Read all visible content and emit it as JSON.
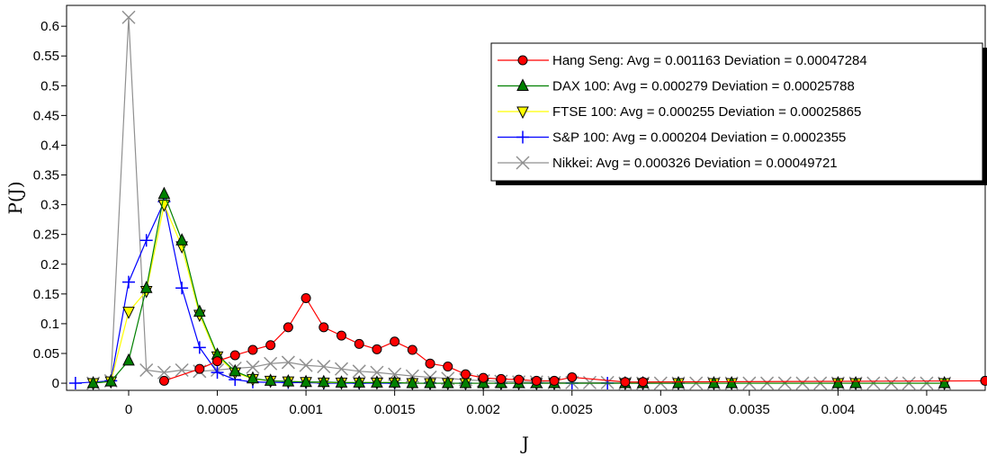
{
  "chart_data": {
    "type": "line",
    "title": "",
    "xlabel": "J",
    "ylabel": "P(J)",
    "xlim": [
      -0.00035,
      0.00483
    ],
    "ylim": [
      -0.012,
      0.635
    ],
    "grid": false,
    "legend_position": "top-right",
    "x_tick_labels": [
      "0",
      "0.0005",
      "0.001",
      "0.0015",
      "0.002",
      "0.0025",
      "0.003",
      "0.0035",
      "0.004",
      "0.0045"
    ],
    "y_tick_labels": [
      "0",
      "0.05",
      "0.1",
      "0.15",
      "0.2",
      "0.25",
      "0.3",
      "0.35",
      "0.4",
      "0.45",
      "0.5",
      "0.55",
      "0.6"
    ],
    "series": [
      {
        "name": "Hang Seng: Avg = 0.001163 Deviation = 0.00047284",
        "color": "#ff0000",
        "marker": "circle",
        "points": [
          [
            0.0002,
            0.004
          ],
          [
            0.0004,
            0.024
          ],
          [
            0.0005,
            0.037
          ],
          [
            0.0006,
            0.047
          ],
          [
            0.0007,
            0.056
          ],
          [
            0.0008,
            0.064
          ],
          [
            0.0009,
            0.094
          ],
          [
            0.001,
            0.143
          ],
          [
            0.0011,
            0.094
          ],
          [
            0.0012,
            0.08
          ],
          [
            0.0013,
            0.066
          ],
          [
            0.0014,
            0.057
          ],
          [
            0.0015,
            0.07
          ],
          [
            0.0016,
            0.056
          ],
          [
            0.0017,
            0.033
          ],
          [
            0.0018,
            0.028
          ],
          [
            0.0019,
            0.015
          ],
          [
            0.002,
            0.009
          ],
          [
            0.0021,
            0.007
          ],
          [
            0.0022,
            0.006
          ],
          [
            0.0023,
            0.004
          ],
          [
            0.0024,
            0.004
          ],
          [
            0.0025,
            0.01
          ],
          [
            0.0028,
            0.002
          ],
          [
            0.0029,
            0.002
          ],
          [
            0.00483,
            0.004
          ]
        ]
      },
      {
        "name": "DAX 100: Avg = 0.000279 Deviation = 0.00025788",
        "color": "#008000",
        "marker": "triangle-up",
        "points": [
          [
            -0.0002,
            0.0
          ],
          [
            -0.0001,
            0.003
          ],
          [
            0.0,
            0.038
          ],
          [
            0.0001,
            0.16
          ],
          [
            0.0002,
            0.318
          ],
          [
            0.0003,
            0.24
          ],
          [
            0.0004,
            0.12
          ],
          [
            0.0005,
            0.048
          ],
          [
            0.0006,
            0.02
          ],
          [
            0.0007,
            0.008
          ],
          [
            0.0008,
            0.004
          ],
          [
            0.0009,
            0.003
          ],
          [
            0.001,
            0.002
          ],
          [
            0.0011,
            0.002
          ],
          [
            0.0012,
            0.001
          ],
          [
            0.0013,
            0.001
          ],
          [
            0.0014,
            0.001
          ],
          [
            0.0015,
            0.001
          ],
          [
            0.0016,
            0.0
          ],
          [
            0.0017,
            0.0
          ],
          [
            0.0018,
            0.0
          ],
          [
            0.0019,
            0.0
          ],
          [
            0.002,
            0.0
          ],
          [
            0.0021,
            0.0
          ],
          [
            0.0022,
            0.0
          ],
          [
            0.0023,
            0.0
          ],
          [
            0.0024,
            0.0
          ],
          [
            0.0028,
            0.0
          ],
          [
            0.0029,
            0.0
          ],
          [
            0.0031,
            0.0
          ],
          [
            0.0033,
            0.0
          ],
          [
            0.0034,
            0.0
          ],
          [
            0.004,
            0.0
          ],
          [
            0.0041,
            0.0
          ],
          [
            0.0046,
            0.0
          ]
        ]
      },
      {
        "name": "FTSE 100: Avg = 0.000255 Deviation = 0.00025865",
        "color": "#ffff00",
        "marker": "triangle-down",
        "points": [
          [
            -0.0002,
            0.0
          ],
          [
            -0.0001,
            0.003
          ],
          [
            0.0,
            0.12
          ],
          [
            0.0001,
            0.155
          ],
          [
            0.0002,
            0.3
          ],
          [
            0.0003,
            0.23
          ],
          [
            0.0004,
            0.115
          ],
          [
            0.0005,
            0.045
          ],
          [
            0.0006,
            0.018
          ],
          [
            0.0007,
            0.007
          ],
          [
            0.0008,
            0.004
          ],
          [
            0.0009,
            0.003
          ],
          [
            0.001,
            0.002
          ],
          [
            0.0011,
            0.001
          ],
          [
            0.0012,
            0.001
          ],
          [
            0.0013,
            0.001
          ],
          [
            0.0014,
            0.001
          ],
          [
            0.0015,
            0.001
          ],
          [
            0.0016,
            0.0
          ],
          [
            0.0017,
            0.0
          ],
          [
            0.0018,
            0.0
          ],
          [
            0.0019,
            0.0
          ],
          [
            0.002,
            0.0
          ],
          [
            0.0021,
            0.0
          ],
          [
            0.0022,
            0.0
          ],
          [
            0.0023,
            0.0
          ],
          [
            0.0024,
            0.0
          ],
          [
            0.0028,
            0.0
          ],
          [
            0.0029,
            0.0
          ],
          [
            0.0031,
            0.0
          ],
          [
            0.0033,
            0.0
          ],
          [
            0.0034,
            0.0
          ],
          [
            0.004,
            0.0
          ],
          [
            0.0041,
            0.0
          ],
          [
            0.0046,
            0.0
          ]
        ]
      },
      {
        "name": "S&P 100: Avg = 0.000204 Deviation = 0.0002355",
        "color": "#0000ff",
        "marker": "plus",
        "points": [
          [
            -0.0003,
            0.0
          ],
          [
            -0.0001,
            0.004
          ],
          [
            0.0,
            0.17
          ],
          [
            0.0001,
            0.24
          ],
          [
            0.0002,
            0.305
          ],
          [
            0.0003,
            0.16
          ],
          [
            0.0004,
            0.06
          ],
          [
            0.0005,
            0.018
          ],
          [
            0.0006,
            0.006
          ],
          [
            0.0007,
            0.002
          ],
          [
            0.0009,
            0.001
          ],
          [
            0.001,
            0.001
          ],
          [
            0.0011,
            0.0
          ],
          [
            0.0013,
            0.0
          ],
          [
            0.0015,
            0.0
          ],
          [
            0.0017,
            0.0
          ],
          [
            0.0019,
            0.0
          ],
          [
            0.0021,
            0.0
          ],
          [
            0.0023,
            0.0
          ],
          [
            0.0025,
            0.0
          ],
          [
            0.0027,
            0.0
          ],
          [
            0.0029,
            0.0
          ],
          [
            0.0031,
            0.0
          ]
        ]
      },
      {
        "name": "Nikkei: Avg = 0.000326 Deviation = 0.00049721",
        "color": "#909090",
        "marker": "x",
        "points": [
          [
            -0.0002,
            0.0
          ],
          [
            -0.0001,
            0.004
          ],
          [
            0.0,
            0.615
          ],
          [
            0.0001,
            0.022
          ],
          [
            0.0002,
            0.018
          ],
          [
            0.0003,
            0.022
          ],
          [
            0.0004,
            0.02
          ],
          [
            0.0005,
            0.022
          ],
          [
            0.0006,
            0.025
          ],
          [
            0.0007,
            0.027
          ],
          [
            0.0008,
            0.033
          ],
          [
            0.0009,
            0.035
          ],
          [
            0.001,
            0.03
          ],
          [
            0.0011,
            0.028
          ],
          [
            0.0012,
            0.024
          ],
          [
            0.0013,
            0.02
          ],
          [
            0.0014,
            0.018
          ],
          [
            0.0015,
            0.015
          ],
          [
            0.0016,
            0.012
          ],
          [
            0.0017,
            0.01
          ],
          [
            0.0018,
            0.008
          ],
          [
            0.0019,
            0.006
          ],
          [
            0.002,
            0.004
          ],
          [
            0.0021,
            0.003
          ],
          [
            0.0022,
            0.002
          ],
          [
            0.0023,
            0.002
          ],
          [
            0.0024,
            0.001
          ],
          [
            0.0025,
            0.001
          ],
          [
            0.0026,
            0.001
          ],
          [
            0.0027,
            0.001
          ],
          [
            0.0028,
            0.0
          ],
          [
            0.0029,
            0.0
          ],
          [
            0.003,
            0.0
          ],
          [
            0.0031,
            0.0
          ],
          [
            0.0032,
            0.0
          ],
          [
            0.0033,
            0.0
          ],
          [
            0.0034,
            0.0
          ],
          [
            0.0035,
            0.0
          ],
          [
            0.0036,
            0.0
          ],
          [
            0.0037,
            0.0
          ],
          [
            0.0038,
            0.0
          ],
          [
            0.0039,
            0.0
          ],
          [
            0.004,
            0.0
          ],
          [
            0.0041,
            0.0
          ],
          [
            0.0042,
            0.0
          ],
          [
            0.0043,
            0.0
          ],
          [
            0.0044,
            0.0
          ],
          [
            0.0045,
            0.0
          ],
          [
            0.0046,
            0.0
          ]
        ]
      }
    ]
  }
}
